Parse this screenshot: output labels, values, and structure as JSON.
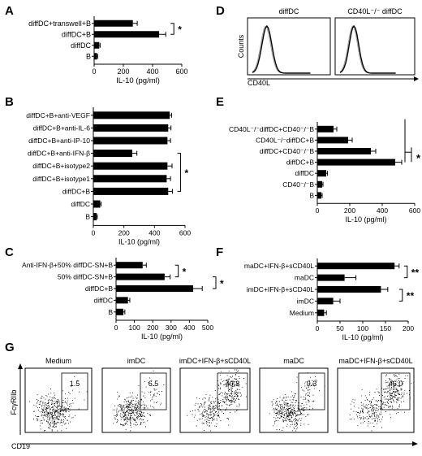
{
  "chart_data": [
    {
      "panel": "A",
      "type": "bar",
      "orientation": "horizontal",
      "categories": [
        "diffDC+transwell+B",
        "diffDC+B",
        "diffDC",
        "B"
      ],
      "values": [
        265,
        445,
        35,
        20
      ],
      "errors": [
        30,
        45,
        6,
        4
      ],
      "xlabel": "IL-10 (pg/ml)",
      "xlim": [
        0,
        600
      ],
      "xticks": [
        0,
        200,
        400,
        600
      ],
      "brackets": [
        {
          "rows": [
            0,
            1
          ],
          "label": "*"
        }
      ]
    },
    {
      "panel": "B",
      "type": "bar",
      "orientation": "horizontal",
      "categories": [
        "diffDC+B+anti-VEGF",
        "diffDC+B+anti-IL-6",
        "diffDC+B+anti-IP-10",
        "diffDC+B+anti-IFN-β",
        "diffDC+B+isotype2",
        "diffDC+B+isotype1",
        "diffDC+B",
        "diffDC",
        "B"
      ],
      "values": [
        500,
        490,
        485,
        255,
        485,
        480,
        490,
        45,
        22
      ],
      "errors": [
        12,
        18,
        20,
        30,
        30,
        25,
        28,
        6,
        4
      ],
      "xlabel": "IL-10 (pg/ml)",
      "xlim": [
        0,
        600
      ],
      "xticks": [
        0,
        200,
        400,
        600
      ],
      "brackets": [
        {
          "rows": [
            3,
            6
          ],
          "label": "*"
        }
      ]
    },
    {
      "panel": "C",
      "type": "bar",
      "orientation": "horizontal",
      "categories": [
        "Anti-IFN-β+50% diffDC-SN+B",
        "50% diffDC-SN+B",
        "diffDC+B",
        "diffDC",
        "B"
      ],
      "values": [
        145,
        265,
        420,
        65,
        40
      ],
      "errors": [
        20,
        30,
        50,
        10,
        8
      ],
      "xlabel": "IL-10 (pg/ml)",
      "xlim": [
        0,
        500
      ],
      "xticks": [
        0,
        100,
        200,
        300,
        400,
        500
      ],
      "brackets": [
        {
          "rows": [
            0,
            1
          ],
          "label": "*"
        },
        {
          "rows": [
            1,
            2
          ],
          "label": "*"
        }
      ]
    },
    {
      "panel": "E",
      "type": "bar",
      "orientation": "horizontal",
      "categories": [
        "CD40L⁻/⁻diffDC+CD40⁻/⁻B",
        "CD40L⁻/⁻diffDC+B",
        "diffDC+CD40⁻/⁻B",
        "diffDC+B",
        "diffDC",
        "CD40⁻/⁻B",
        "B"
      ],
      "values": [
        100,
        190,
        330,
        480,
        55,
        30,
        25
      ],
      "errors": [
        20,
        25,
        30,
        40,
        8,
        5,
        5
      ],
      "xlabel": "IL-10 (pg/ml)",
      "xlim": [
        0,
        600
      ],
      "xticks": [
        0,
        200,
        400,
        600
      ],
      "brackets": [
        {
          "rows": [
            0,
            3
          ],
          "label": "*"
        }
      ]
    },
    {
      "panel": "F",
      "type": "bar",
      "orientation": "horizontal",
      "categories": [
        "maDC+IFN-β+sCD40L",
        "maDC",
        "imDC+IFN-β+sCD40L",
        "imDC",
        "Medium"
      ],
      "values": [
        170,
        60,
        140,
        35,
        15
      ],
      "errors": [
        10,
        25,
        15,
        15,
        5
      ],
      "xlabel": "IL-10 (pg/ml)",
      "xlim": [
        0,
        200
      ],
      "xticks": [
        0,
        50,
        100,
        150,
        200
      ],
      "brackets": [
        {
          "rows": [
            0,
            1
          ],
          "label": "**"
        },
        {
          "rows": [
            2,
            3
          ],
          "label": "**"
        }
      ]
    },
    {
      "panel": "D",
      "type": "histogram",
      "subpanels": [
        "diffDC",
        "CD40L⁻/⁻ diffDC"
      ],
      "ylabel": "Counts",
      "xlabel": "CD40L"
    },
    {
      "panel": "G",
      "type": "scatter",
      "subpanels": [
        {
          "title": "Medium",
          "gate_percent": "1.5"
        },
        {
          "title": "imDC",
          "gate_percent": "6.5"
        },
        {
          "title": "imDC+IFN-β+sCD40L",
          "gate_percent": "40.8"
        },
        {
          "title": "maDC",
          "gate_percent": "9.3"
        },
        {
          "title": "maDC+IFN-β+sCD40L",
          "gate_percent": "46.0"
        }
      ],
      "ylabel": "FcγRIIb",
      "xlabel": "CD19"
    }
  ]
}
